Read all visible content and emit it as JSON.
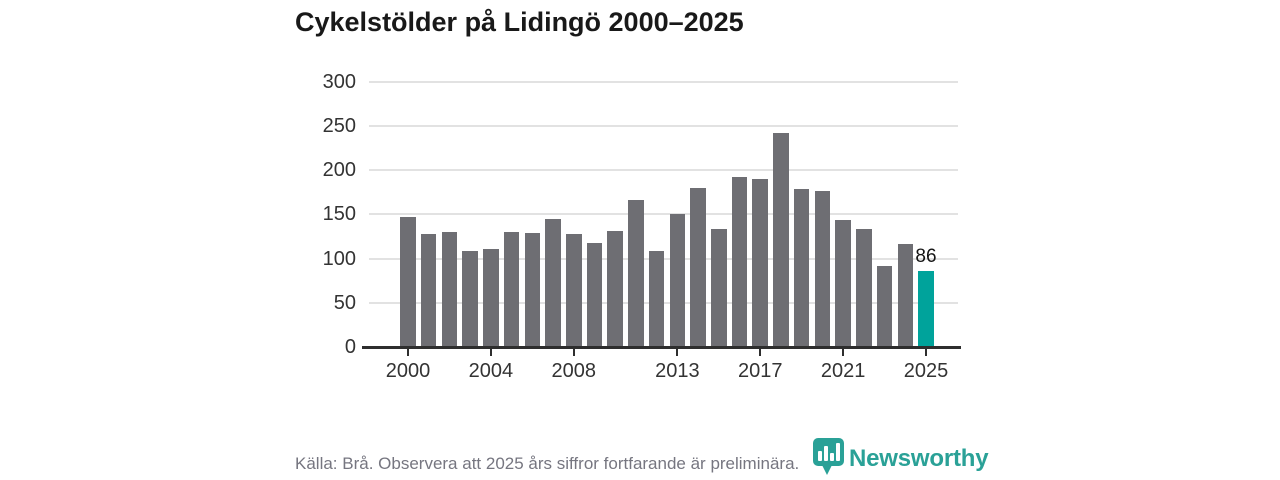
{
  "title": "Cykelstölder på Lidingö 2000–2025",
  "chart_data": {
    "type": "bar",
    "title": "Cykelstölder på Lidingö 2000–2025",
    "x": [
      2000,
      2001,
      2002,
      2003,
      2004,
      2005,
      2006,
      2007,
      2008,
      2009,
      2010,
      2011,
      2012,
      2013,
      2014,
      2015,
      2016,
      2017,
      2018,
      2019,
      2020,
      2021,
      2022,
      2023,
      2024,
      2025
    ],
    "values": [
      147,
      128,
      130,
      108,
      111,
      130,
      129,
      145,
      128,
      118,
      131,
      166,
      108,
      150,
      180,
      133,
      192,
      190,
      242,
      178,
      176,
      144,
      133,
      92,
      116,
      86
    ],
    "highlight_year": 2025,
    "annotation": {
      "year": 2025,
      "label": "86"
    },
    "ylim": [
      0,
      300
    ],
    "yticks": [
      0,
      50,
      100,
      150,
      200,
      250,
      300
    ],
    "xticks": [
      2000,
      2004,
      2008,
      2013,
      2017,
      2021,
      2025
    ],
    "grid": true,
    "legend": false,
    "xlabel": "",
    "ylabel": "",
    "bar_color": "#6e6e73",
    "highlight_color": "#00a39b"
  },
  "footer": {
    "source_note": "Källa: Brå. Observera att 2025 års siffror fortfarande är preliminära.",
    "brand_name": "Newsworthy",
    "brand_color": "#2aa197"
  }
}
